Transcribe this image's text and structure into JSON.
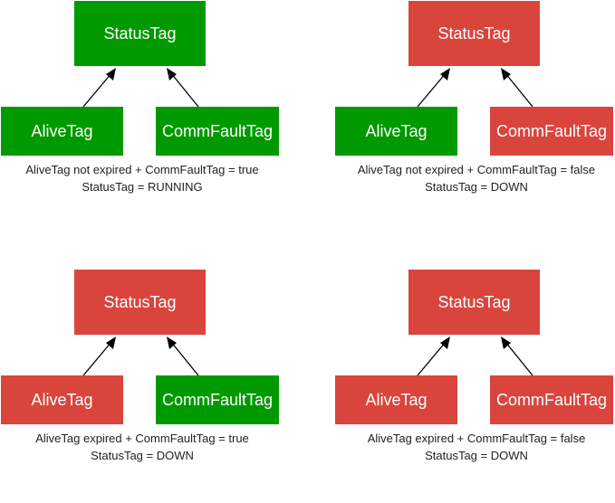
{
  "colors": {
    "running": "#009900",
    "down": "#d9453d",
    "arrow": "#000000"
  },
  "scenarios": [
    {
      "status": {
        "label": "StatusTag",
        "state": "running"
      },
      "alive": {
        "label": "AliveTag",
        "state": "running"
      },
      "comm": {
        "label": "CommFaultTag",
        "state": "running"
      },
      "condition": "AliveTag not expired + CommFaultTag = true",
      "result": "StatusTag = RUNNING"
    },
    {
      "status": {
        "label": "StatusTag",
        "state": "down"
      },
      "alive": {
        "label": "AliveTag",
        "state": "running"
      },
      "comm": {
        "label": "CommFaultTag",
        "state": "down"
      },
      "condition": "AliveTag not expired + CommFaultTag = false",
      "result": "StatusTag = DOWN"
    },
    {
      "status": {
        "label": "StatusTag",
        "state": "down"
      },
      "alive": {
        "label": "AliveTag",
        "state": "down"
      },
      "comm": {
        "label": "CommFaultTag",
        "state": "running"
      },
      "condition": "AliveTag expired + CommFaultTag = true",
      "result": "StatusTag = DOWN"
    },
    {
      "status": {
        "label": "StatusTag",
        "state": "down"
      },
      "alive": {
        "label": "AliveTag",
        "state": "down"
      },
      "comm": {
        "label": "CommFaultTag",
        "state": "down"
      },
      "condition": "AliveTag expired + CommFaultTag = false",
      "result": "StatusTag = DOWN"
    }
  ]
}
